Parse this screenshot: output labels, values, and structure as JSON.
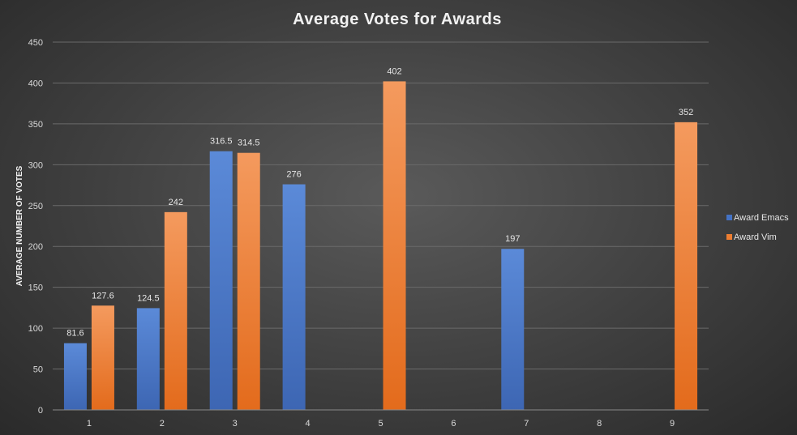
{
  "chart_data": {
    "type": "bar",
    "title": "Average Votes for Awards",
    "xlabel": "",
    "ylabel": "AVERAGE NUMBER OF VOTES",
    "categories": [
      "1",
      "2",
      "3",
      "4",
      "5",
      "6",
      "7",
      "8",
      "9"
    ],
    "series": [
      {
        "name": "Award Emacs",
        "color": "#4472c4",
        "values": [
          81.6,
          124.5,
          316.5,
          276,
          null,
          null,
          197,
          null,
          null
        ]
      },
      {
        "name": "Award Vim",
        "color": "#ed7d31",
        "values": [
          127.6,
          242,
          314.5,
          null,
          402,
          null,
          null,
          null,
          352
        ]
      }
    ],
    "ylim": [
      0,
      450
    ],
    "yticks": [
      0,
      50,
      100,
      150,
      200,
      250,
      300,
      350,
      400,
      450
    ],
    "grid": true,
    "legend_position": "right"
  }
}
